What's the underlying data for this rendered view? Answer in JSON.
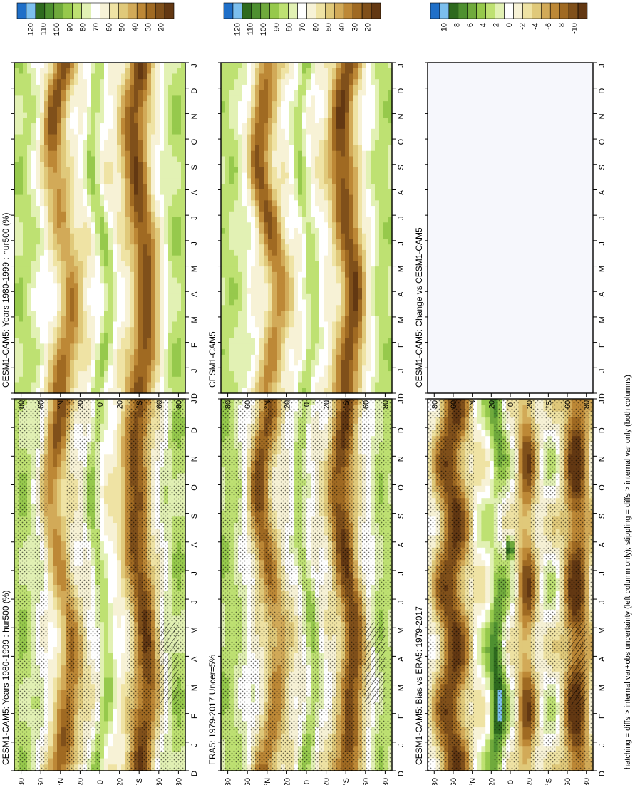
{
  "figure": {
    "footnote": "hatching = diffs > internal var+obs uncertainty (left column only); stippling = diffs > internal var only (both columns)"
  },
  "palettes": {
    "absolute": [
      "#1f6fc8",
      "#7cbfee",
      "#2e6a1e",
      "#4e9030",
      "#70aa3c",
      "#96c94c",
      "#bee172",
      "#e2f1b4",
      "#ffffff",
      "#f7f2d6",
      "#efe3a4",
      "#e0c97a",
      "#d2aa58",
      "#bd8836",
      "#a06a22",
      "#80501a",
      "#633812"
    ],
    "difference": [
      "#1f6fc8",
      "#7cbfee",
      "#2e6a1e",
      "#4e9030",
      "#70aa3c",
      "#96c94c",
      "#bee172",
      "#e2f1b4",
      "#ffffff",
      "#f7f2d6",
      "#efe3a4",
      "#e0c97a",
      "#d2aa58",
      "#bd8836",
      "#a06a22",
      "#80501a",
      "#633812"
    ],
    "blank": "#f6f7fc",
    "stipple": "#000000"
  },
  "colorbars": {
    "absolute": [
      "120",
      "110",
      "100",
      "90",
      "80",
      "70",
      "60",
      "50",
      "40",
      "30",
      "20"
    ],
    "difference": [
      "10",
      "8",
      "6",
      "4",
      "2",
      "0",
      "-2",
      "-4",
      "-6",
      "-8",
      "-10"
    ]
  },
  "axes": {
    "lat_labels": [
      "80",
      "60",
      "°N",
      "20",
      "0",
      "20",
      "°S",
      "60",
      "80"
    ],
    "month_labels": [
      "D",
      "J",
      "F",
      "M",
      "A",
      "M",
      "J",
      "J",
      "A",
      "S",
      "O",
      "N",
      "D",
      "J"
    ]
  },
  "panels": [
    {
      "id": "model-left",
      "title": "CESM1-CAM5: Years 1980-1999 : hur500 (%)",
      "type": "absolute",
      "stipple": "scattered",
      "hatching": true
    },
    {
      "id": "model-right",
      "title": "CESM1-CAM5: Years 1980-1999 : hur500 (%)",
      "type": "absolute",
      "stipple": "none",
      "hatching": false
    },
    {
      "id": "obs-left",
      "title": "ERA5: 1979-2017 Uncer=5%",
      "type": "absolute",
      "stipple": "uniform",
      "hatching": true
    },
    {
      "id": "ref-right",
      "title": "CESM1-CAM5",
      "type": "absolute",
      "stipple": "none",
      "hatching": false
    },
    {
      "id": "bias-left",
      "title": "CESM1-CAM5: Bias vs ERA5: 1979-2017",
      "type": "difference",
      "stipple": "bias",
      "hatching": true
    },
    {
      "id": "change-right",
      "title": "CESM1-CAM5: Change vs CESM1-CAM5",
      "type": "blank",
      "stipple": "none",
      "hatching": false
    }
  ],
  "chart_data": [
    {
      "type": "heatmap",
      "title": "CESM1-CAM5: Years 1980-1999 : hur500 (%)",
      "x": [
        "D",
        "J",
        "F",
        "M",
        "A",
        "M",
        "J",
        "J",
        "A",
        "S",
        "O",
        "N",
        "D",
        "J"
      ],
      "y": [
        "80",
        "60",
        "°N",
        "20",
        "0",
        "20",
        "°S",
        "60",
        "80"
      ],
      "colorbar": [
        "120",
        "110",
        "100",
        "90",
        "80",
        "70",
        "60",
        "50",
        "40",
        "30",
        "20"
      ]
    },
    {
      "type": "heatmap",
      "title": "CESM1-CAM5: Years 1980-1999 : hur500 (%)",
      "x": [
        "D",
        "J",
        "F",
        "M",
        "A",
        "M",
        "J",
        "J",
        "A",
        "S",
        "O",
        "N",
        "D",
        "J"
      ],
      "y": [
        "80",
        "60",
        "°N",
        "20",
        "0",
        "20",
        "°S",
        "60",
        "80"
      ],
      "colorbar": [
        "120",
        "110",
        "100",
        "90",
        "80",
        "70",
        "60",
        "50",
        "40",
        "30",
        "20"
      ]
    },
    {
      "type": "heatmap",
      "title": "ERA5: 1979-2017 Uncer=5%",
      "x": [
        "D",
        "J",
        "F",
        "M",
        "A",
        "M",
        "J",
        "J",
        "A",
        "S",
        "O",
        "N",
        "D",
        "J"
      ],
      "y": [
        "80",
        "60",
        "°N",
        "20",
        "0",
        "20",
        "°S",
        "60",
        "80"
      ],
      "colorbar": [
        "120",
        "110",
        "100",
        "90",
        "80",
        "70",
        "60",
        "50",
        "40",
        "30",
        "20"
      ]
    },
    {
      "type": "heatmap",
      "title": "CESM1-CAM5",
      "x": [
        "D",
        "J",
        "F",
        "M",
        "A",
        "M",
        "J",
        "J",
        "A",
        "S",
        "O",
        "N",
        "D",
        "J"
      ],
      "y": [
        "80",
        "60",
        "°N",
        "20",
        "0",
        "20",
        "°S",
        "60",
        "80"
      ],
      "colorbar": [
        "120",
        "110",
        "100",
        "90",
        "80",
        "70",
        "60",
        "50",
        "40",
        "30",
        "20"
      ]
    },
    {
      "type": "heatmap",
      "title": "CESM1-CAM5: Bias vs ERA5: 1979-2017",
      "x": [
        "D",
        "J",
        "F",
        "M",
        "A",
        "M",
        "J",
        "J",
        "A",
        "S",
        "O",
        "N",
        "D",
        "J"
      ],
      "y": [
        "80",
        "60",
        "°N",
        "20",
        "0",
        "20",
        "°S",
        "60",
        "80"
      ],
      "colorbar": [
        "10",
        "8",
        "6",
        "4",
        "2",
        "0",
        "-2",
        "-4",
        "-6",
        "-8",
        "-10"
      ]
    },
    {
      "type": "heatmap",
      "title": "CESM1-CAM5: Change vs CESM1-CAM5",
      "x": [
        "D",
        "J",
        "F",
        "M",
        "A",
        "M",
        "J",
        "J",
        "A",
        "S",
        "O",
        "N",
        "D",
        "J"
      ],
      "y": [
        "80",
        "60",
        "°N",
        "20",
        "0",
        "20",
        "°S",
        "60",
        "80"
      ],
      "colorbar": [
        "10",
        "8",
        "6",
        "4",
        "2",
        "0",
        "-2",
        "-4",
        "-6",
        "-8",
        "-10"
      ]
    }
  ]
}
